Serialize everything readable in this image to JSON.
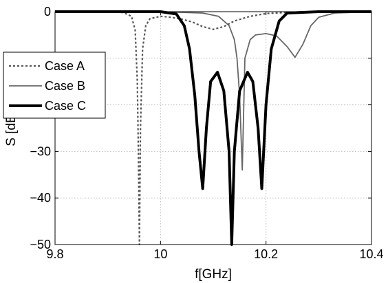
{
  "chart_data": {
    "type": "line",
    "xlabel": "f[GHz]",
    "ylabel": "S [dB]",
    "xlim": [
      9.8,
      10.4
    ],
    "ylim": [
      -50,
      0
    ],
    "xticks": [
      "9.8",
      "10",
      "10.2",
      "10.4"
    ],
    "yticks": [
      "0",
      "−10",
      "−20",
      "−30",
      "−40",
      "−50"
    ],
    "grid": true,
    "legend_position": "left",
    "series": [
      {
        "name": "Case A",
        "color": "#555555",
        "style": "dotted",
        "x": [
          9.8,
          9.9,
          9.93,
          9.945,
          9.952,
          9.956,
          9.958,
          9.96,
          9.962,
          9.966,
          9.972,
          9.98,
          10.0,
          10.02,
          10.04,
          10.06,
          10.08,
          10.1,
          10.12,
          10.14,
          10.17,
          10.2,
          10.25,
          10.3,
          10.4
        ],
        "y": [
          0,
          0,
          -0.2,
          -1,
          -4,
          -15,
          -30,
          -50,
          -25,
          -8,
          -3,
          -1.5,
          -1,
          -1.2,
          -1.6,
          -2.2,
          -3.2,
          -3.8,
          -3.2,
          -2.0,
          -1.0,
          -0.4,
          -0.1,
          0,
          0
        ]
      },
      {
        "name": "Case B",
        "color": "#666666",
        "style": "solid",
        "x": [
          9.8,
          10.0,
          10.08,
          10.11,
          10.13,
          10.14,
          10.145,
          10.15,
          10.155,
          10.16,
          10.17,
          10.18,
          10.2,
          10.22,
          10.24,
          10.255,
          10.27,
          10.285,
          10.3,
          10.33,
          10.4
        ],
        "y": [
          0,
          0,
          -0.3,
          -1,
          -3,
          -6,
          -10,
          -18,
          -34,
          -10,
          -6,
          -5,
          -4.7,
          -5.2,
          -7.5,
          -9.8,
          -7,
          -3,
          -1.2,
          -0.3,
          0
        ],
        "note": "dip near 10.155"
      },
      {
        "name": "Case C",
        "color": "#000000",
        "style": "solid-thick",
        "x": [
          9.8,
          10.0,
          10.03,
          10.045,
          10.055,
          10.065,
          10.073,
          10.08,
          10.087,
          10.095,
          10.108,
          10.12,
          10.13,
          10.135,
          10.14,
          10.15,
          10.165,
          10.175,
          10.185,
          10.192,
          10.2,
          10.21,
          10.225,
          10.24,
          10.3,
          10.4
        ],
        "y": [
          0,
          0,
          -0.5,
          -3,
          -8,
          -18,
          -30,
          -38,
          -25,
          -15,
          -13,
          -17,
          -30,
          -50,
          -30,
          -17,
          -13,
          -15,
          -25,
          -38,
          -20,
          -8,
          -2,
          -0.3,
          0,
          0
        ]
      }
    ]
  }
}
